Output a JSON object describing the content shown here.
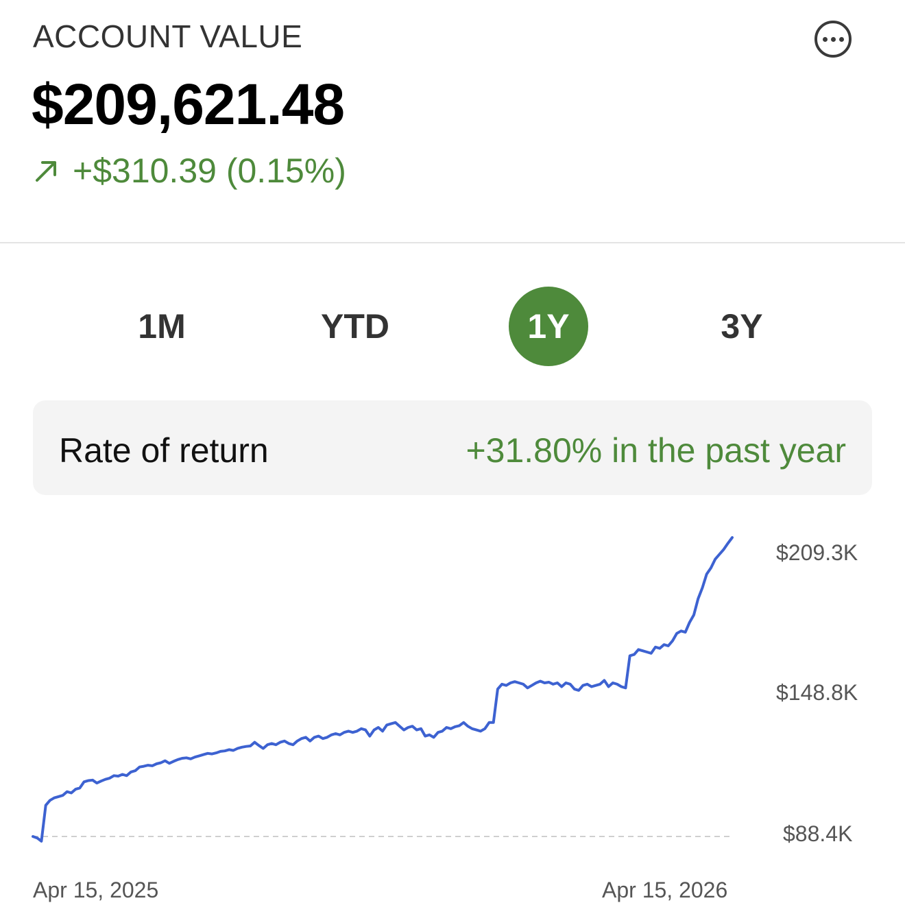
{
  "header": {
    "title": "ACCOUNT VALUE",
    "value": "$209,621.48",
    "change": "+$310.39 (0.15%)",
    "change_icon": "arrow-up-right-icon",
    "more_icon": "more-options-icon"
  },
  "tabs": [
    {
      "label": "1M",
      "active": false
    },
    {
      "label": "YTD",
      "active": false
    },
    {
      "label": "1Y",
      "active": true
    },
    {
      "label": "3Y",
      "active": false
    }
  ],
  "return_box": {
    "label": "Rate of return",
    "value": "+31.80% in the past year"
  },
  "colors": {
    "accent_green": "#4e8a3b",
    "line_blue": "#3d62d1",
    "baseline_gray": "#cfcfcf"
  },
  "chart_data": {
    "type": "line",
    "y_ticks": [
      "$209.3K",
      "$148.8K",
      "$88.4K"
    ],
    "x_ticks": [
      "Apr 15, 2025",
      "Apr 15, 2026"
    ],
    "ylim": [
      88400,
      209300
    ],
    "baseline": 88400,
    "series": [
      {
        "values": [
          88400,
          87800,
          86500,
          101000,
          103000,
          104000,
          104500,
          105000,
          106500,
          106000,
          107500,
          108000,
          110500,
          111000,
          111200,
          110000,
          110800,
          111500,
          112000,
          113000,
          112800,
          113500,
          113000,
          114500,
          115000,
          116500,
          116800,
          117200,
          117000,
          117800,
          118200,
          119000,
          118000,
          118800,
          119500,
          120000,
          120200,
          119800,
          120500,
          121000,
          121500,
          122000,
          121800,
          122200,
          122800,
          123000,
          123500,
          123200,
          124000,
          124500,
          124800,
          125000,
          126500,
          125200,
          124000,
          125500,
          126000,
          125500,
          126500,
          127000,
          126000,
          125500,
          127000,
          128000,
          128500,
          127000,
          128500,
          129000,
          128000,
          128500,
          129500,
          130000,
          129500,
          130500,
          131000,
          130500,
          131000,
          132000,
          131500,
          129000,
          131500,
          132500,
          131000,
          133500,
          134000,
          134500,
          133000,
          131500,
          132500,
          133000,
          131500,
          132000,
          129000,
          129500,
          128500,
          130500,
          131000,
          132500,
          132000,
          132800,
          133200,
          134500,
          133000,
          132000,
          131500,
          131000,
          132000,
          134500,
          134500,
          148000,
          150000,
          149500,
          150500,
          151000,
          150500,
          150000,
          148500,
          149500,
          150500,
          151200,
          150500,
          150800,
          150000,
          150500,
          149000,
          150500,
          150000,
          148000,
          147500,
          149500,
          150000,
          149000,
          149500,
          150000,
          151500,
          149000,
          150500,
          150000,
          149000,
          148500,
          161500,
          162000,
          164000,
          163500,
          163000,
          162500,
          165000,
          164500,
          166000,
          165500,
          167500,
          170500,
          171500,
          171000,
          175000,
          178000,
          184500,
          189000,
          194500,
          197000,
          200500,
          202500,
          204500,
          207000,
          209300
        ]
      }
    ]
  }
}
